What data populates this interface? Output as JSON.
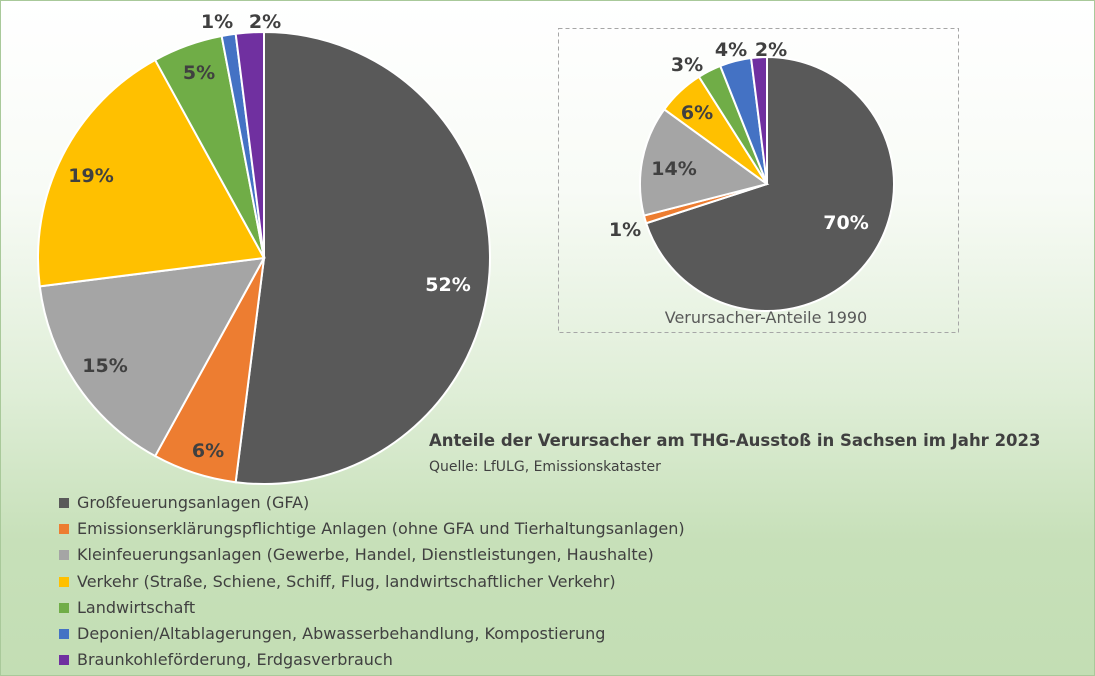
{
  "colors": {
    "gfa": "#595959",
    "emission": "#ed7d31",
    "klein": "#a5a5a5",
    "verkehr": "#ffc000",
    "landwirtschaft": "#70ad47",
    "deponien": "#4472c4",
    "braunkohle": "#7030a0"
  },
  "caption": {
    "title": "Anteile der Verursacher am THG-Ausstoß in Sachsen im Jahr 2023",
    "source": "Quelle: LfULG, Emissionskataster"
  },
  "legend": [
    "Großfeuerungsanlagen (GFA)",
    "Emissionserklärungspflichtige Anlagen (ohne GFA und Tierhaltungsanlagen)",
    "Kleinfeuerungsanlagen (Gewerbe, Handel, Dienstleistungen, Haushalte)",
    "Verkehr (Straße, Schiene, Schiff, Flug, landwirtschaftlicher Verkehr)",
    "Landwirtschaft",
    "Deponien/Altablagerungen, Abwasserbehandlung, Kompostierung",
    "Braunkohleförderung, Erdgasverbrauch"
  ],
  "chart_data": [
    {
      "type": "pie",
      "title": "Anteile der Verursacher am THG-Ausstoß in Sachsen im Jahr 2023",
      "categories": [
        "Großfeuerungsanlagen (GFA)",
        "Emissionserklärungspflichtige Anlagen (ohne GFA und Tierhaltungsanlagen)",
        "Kleinfeuerungsanlagen (Gewerbe, Handel, Dienstleistungen, Haushalte)",
        "Verkehr (Straße, Schiene, Schiff, Flug, landwirtschaftlicher Verkehr)",
        "Landwirtschaft",
        "Deponien/Altablagerungen, Abwasserbehandlung, Kompostierung",
        "Braunkohleförderung, Erdgasverbrauch"
      ],
      "values": [
        52,
        6,
        15,
        19,
        5,
        1,
        2
      ],
      "labels": [
        "52%",
        "6%",
        "15%",
        "19%",
        "5%",
        "1%",
        "2%"
      ],
      "legend_position": "bottom-left"
    },
    {
      "type": "pie",
      "title": "Verursacher-Anteile 1990",
      "categories": [
        "Großfeuerungsanlagen (GFA)",
        "Emissionserklärungspflichtige Anlagen (ohne GFA und Tierhaltungsanlagen)",
        "Kleinfeuerungsanlagen (Gewerbe, Handel, Dienstleistungen, Haushalte)",
        "Verkehr (Straße, Schiene, Schiff, Flug, landwirtschaftlicher Verkehr)",
        "Landwirtschaft",
        "Deponien/Altablagerungen, Abwasserbehandlung, Kompostierung",
        "Braunkohleförderung, Erdgasverbrauch"
      ],
      "values": [
        70,
        1,
        14,
        6,
        3,
        4,
        2
      ],
      "labels": [
        "70%",
        "1%",
        "14%",
        "6%",
        "3%",
        "4%",
        "2%"
      ]
    }
  ]
}
